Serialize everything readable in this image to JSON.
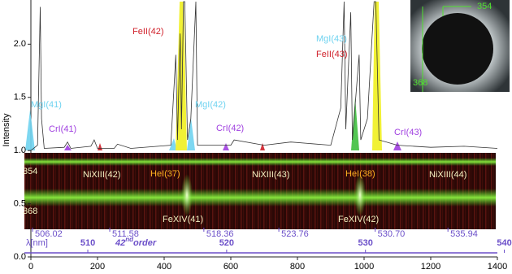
{
  "chart_data": {
    "type": "line",
    "y_label": "Intensity",
    "xlim": [
      0,
      1400
    ],
    "ylim": [
      0,
      2.4
    ],
    "xticks": [
      0,
      200,
      400,
      600,
      800,
      1000,
      1200,
      1400
    ],
    "yticks": [
      {
        "value": 0,
        "label": "0.0"
      },
      {
        "value": 0.5,
        "label": "0.5"
      },
      {
        "value": 1,
        "label": "1.0"
      },
      {
        "value": 1.5,
        "label": "1.5"
      },
      {
        "value": 2,
        "label": "2.0"
      }
    ],
    "series": [
      {
        "color": "#333333",
        "x": [
          0,
          20,
          28,
          32,
          40,
          100,
          110,
          120,
          180,
          190,
          200,
          250,
          260,
          300,
          420,
          435,
          440,
          448,
          452,
          458,
          462,
          470,
          480,
          495,
          500,
          600,
          610,
          700,
          780,
          900,
          930,
          940,
          945,
          960,
          965,
          985,
          990,
          1010,
          1030,
          1035,
          1045,
          1100,
          1200,
          1300,
          1400
        ],
        "values": [
          1.0,
          1.05,
          2.35,
          1.3,
          1.02,
          1.03,
          1.08,
          1.02,
          1.04,
          1.1,
          1.02,
          1.02,
          1.06,
          1.02,
          1.05,
          1.9,
          1.1,
          2.1,
          1.2,
          2.4,
          2.4,
          1.1,
          1.3,
          2.4,
          1.05,
          1.05,
          1.1,
          1.05,
          1.08,
          1.05,
          1.4,
          2.4,
          1.2,
          2.3,
          1.1,
          1.9,
          1.1,
          1.3,
          2.4,
          2.4,
          1.1,
          1.05,
          1.03,
          1.04,
          1.02
        ]
      }
    ],
    "annotations": [
      {
        "text": "MgI(41)",
        "color": "#6fd3f0"
      },
      {
        "text": "CrI(41)",
        "color": "#a040e0"
      },
      {
        "text": "FeII(42)",
        "color": "#d0202a"
      },
      {
        "text": "MgI(42)",
        "color": "#6fd3f0"
      },
      {
        "text": "CrI(42)",
        "color": "#a040e0"
      },
      {
        "text": "MgI(43)",
        "color": "#6fd3f0"
      },
      {
        "text": "FeII(43)",
        "color": "#d0202a"
      },
      {
        "text": "CrI(43)",
        "color": "#a040e0"
      }
    ],
    "spectrum_image": {
      "rows": [
        "354",
        "368"
      ],
      "lines": [
        {
          "text": "NiXIII(42)",
          "color": "#f5f0c0"
        },
        {
          "text": "HeI(37)",
          "color": "#ffb020"
        },
        {
          "text": "NiXIII(43)",
          "color": "#f5f0c0"
        },
        {
          "text": "HeI(38)",
          "color": "#ffb020"
        },
        {
          "text": "NiXIII(44)",
          "color": "#f5f0c0"
        },
        {
          "text": "FeXIV(41)",
          "color": "#f5f0c0"
        },
        {
          "text": "FeXIV(42)",
          "color": "#f5f0c0"
        }
      ],
      "wavelength_lim": [
        505.9,
        539.5
      ],
      "wavelength_ticks": [
        {
          "value": 506.02,
          "label": "506.02"
        },
        {
          "value": 511.58,
          "label": "511.58"
        },
        {
          "value": 518.36,
          "label": "518.36"
        },
        {
          "value": 523.76,
          "label": "523.76"
        },
        {
          "value": 530.7,
          "label": "530.70"
        },
        {
          "value": 535.94,
          "label": "535.94"
        }
      ],
      "wavelength_major_ticks": [
        510,
        520,
        530,
        540
      ],
      "wavelength_label": "λ[nm]",
      "order": "42",
      "order_suffix": "nd",
      "order_word": "order"
    },
    "inset": {
      "labels": [
        "354",
        "368"
      ]
    }
  }
}
